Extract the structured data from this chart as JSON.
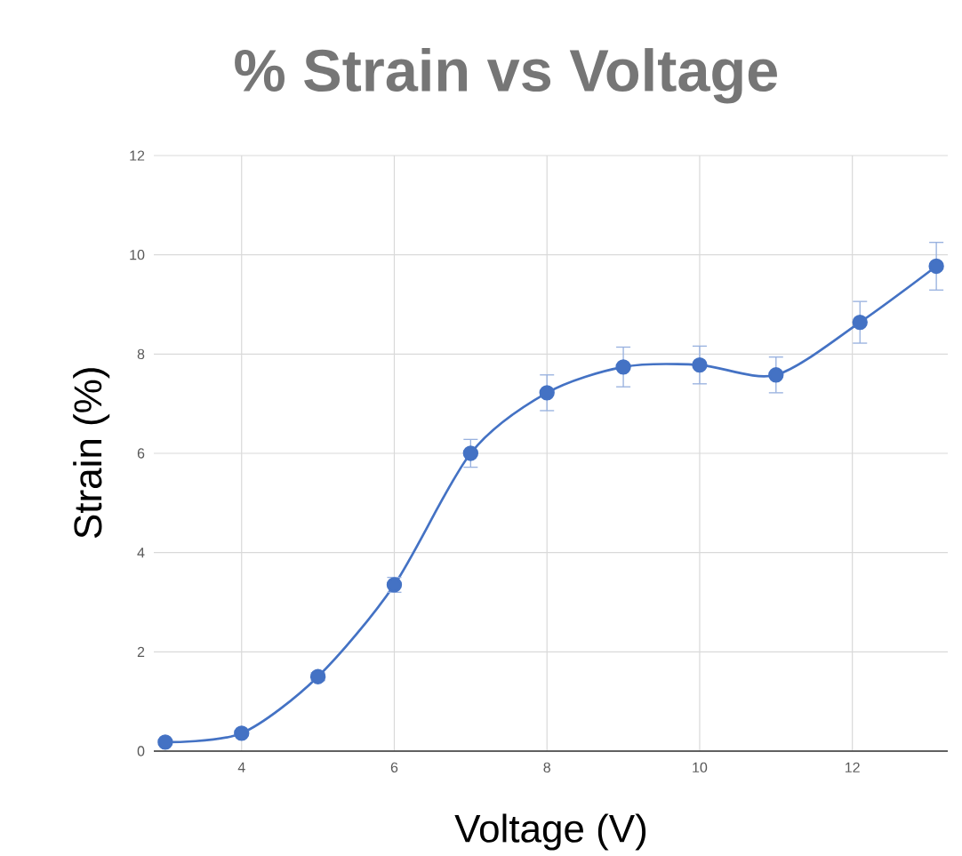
{
  "chart_data": {
    "type": "line",
    "title": "% Strain vs Voltage",
    "xlabel": "Voltage (V)",
    "ylabel": "Strain (%)",
    "x": [
      3,
      4,
      5,
      6,
      7,
      8,
      9,
      10,
      11,
      12.1,
      13.1
    ],
    "series": [
      {
        "color": "#4472c4",
        "values": [
          0.18,
          0.36,
          1.5,
          3.35,
          6.0,
          7.22,
          7.74,
          7.78,
          7.58,
          8.64,
          9.77
        ],
        "errors": [
          0.05,
          0.05,
          0.08,
          0.15,
          0.28,
          0.36,
          0.4,
          0.38,
          0.36,
          0.42,
          0.48
        ]
      }
    ],
    "xlim": [
      2.85,
      13.25
    ],
    "ylim": [
      0,
      12
    ],
    "xticks": [
      4,
      6,
      8,
      10,
      12
    ],
    "yticks": [
      0,
      2,
      4,
      6,
      8,
      10,
      12
    ],
    "grid": true,
    "marker": "circle",
    "line_style": "solid"
  }
}
